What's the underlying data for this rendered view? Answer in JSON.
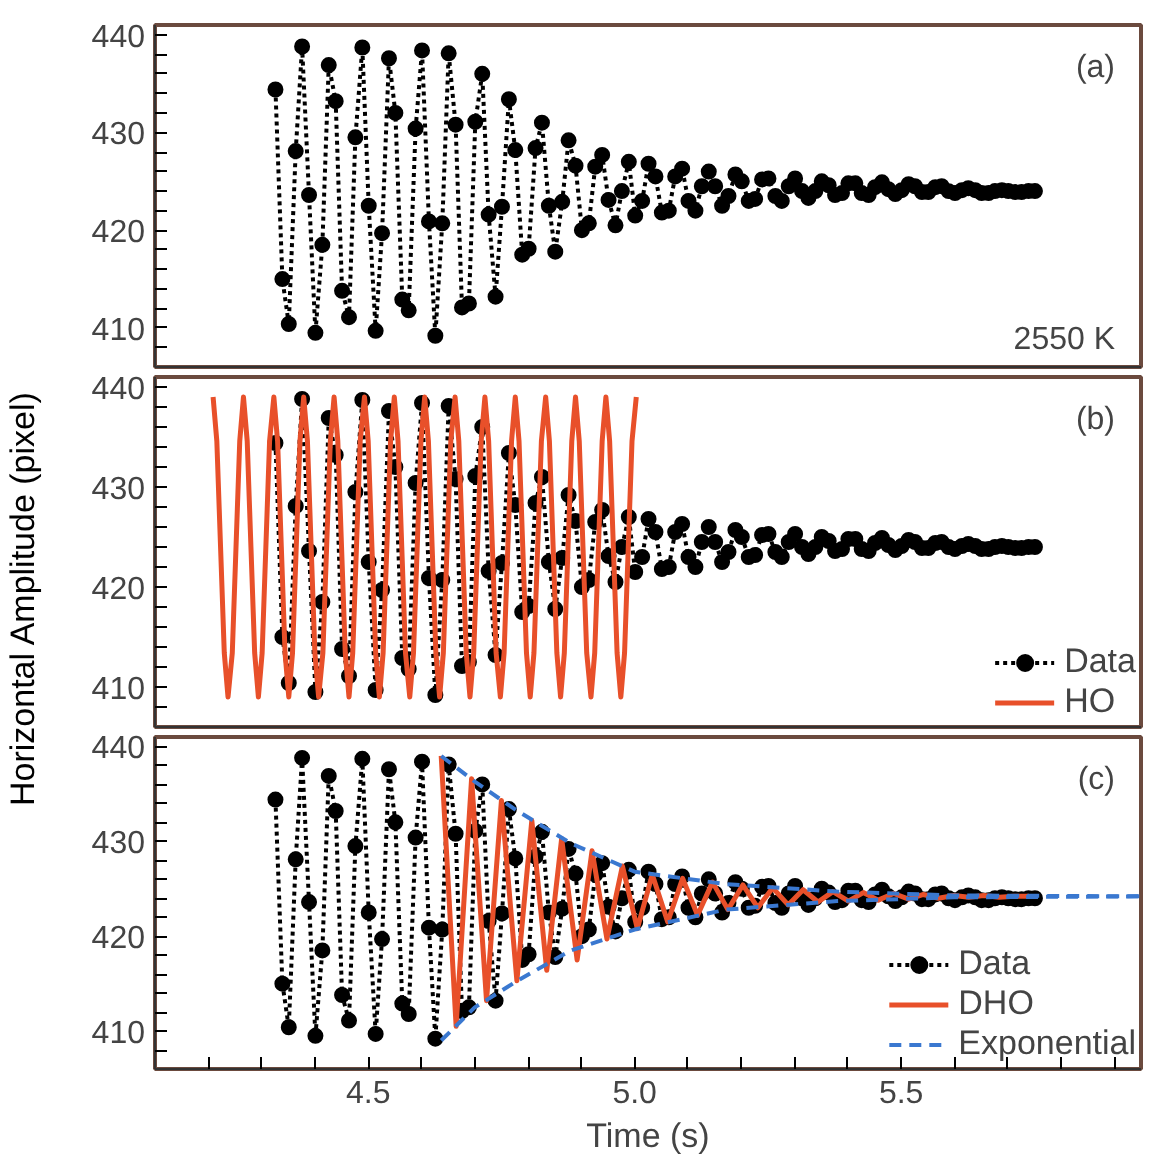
{
  "chart_data": [
    {
      "type": "line",
      "annotations": [
        "(a)",
        "2550 K"
      ],
      "xlim": [
        4.1,
        5.95
      ],
      "ylim": [
        406,
        441
      ],
      "yticks": [
        {
          "value": 408,
          "label": null
        },
        410,
        {
          "value": 412,
          "label": null
        },
        {
          "value": 414,
          "label": null
        },
        {
          "value": 416,
          "label": null
        },
        {
          "value": 418,
          "label": null
        },
        420,
        {
          "value": 422,
          "label": null
        },
        {
          "value": 424,
          "label": null
        },
        {
          "value": 426,
          "label": null
        },
        {
          "value": 428,
          "label": null
        },
        430,
        {
          "value": 432,
          "label": null
        },
        {
          "value": 434,
          "label": null
        },
        {
          "value": 436,
          "label": null
        },
        {
          "value": 438,
          "label": null
        },
        440
      ],
      "tick_labels": "y",
      "grid": false,
      "legend": false,
      "series": [
        {
          "color": "#000000",
          "marker": "circle",
          "line_style": "dotted",
          "x": [
            4.326,
            4.339,
            4.351,
            4.364,
            4.376,
            4.389,
            4.401,
            4.414,
            4.426,
            4.439,
            4.451,
            4.464,
            4.476,
            4.489,
            4.501,
            4.514,
            4.526,
            4.539,
            4.551,
            4.564,
            4.576,
            4.589,
            4.601,
            4.614,
            4.626,
            4.639,
            4.651,
            4.664,
            4.676,
            4.689,
            4.701,
            4.714,
            4.726,
            4.739,
            4.751,
            4.764,
            4.776,
            4.789,
            4.801,
            4.814,
            4.826,
            4.839,
            4.851,
            4.864,
            4.876,
            4.889,
            4.901,
            4.914,
            4.926,
            4.939,
            4.951,
            4.964,
            4.976,
            4.989,
            5.001,
            5.014,
            5.026,
            5.039,
            5.051,
            5.064,
            5.076,
            5.089,
            5.101,
            5.114,
            5.126,
            5.139,
            5.151,
            5.164,
            5.176,
            5.189,
            5.201,
            5.214,
            5.226,
            5.239,
            5.251,
            5.264,
            5.276,
            5.289,
            5.301,
            5.314,
            5.326,
            5.339,
            5.351,
            5.364,
            5.376,
            5.389,
            5.401,
            5.414,
            5.426,
            5.439,
            5.451,
            5.464,
            5.476,
            5.489,
            5.501,
            5.514,
            5.526,
            5.539,
            5.551,
            5.564,
            5.576,
            5.589,
            5.601,
            5.614,
            5.626,
            5.639,
            5.651,
            5.664,
            5.676,
            5.689,
            5.701,
            5.714,
            5.726,
            5.739,
            5.751
          ],
          "values": [
            434.4,
            415.0,
            410.4,
            428.1,
            438.8,
            423.6,
            409.5,
            418.5,
            436.9,
            433.2,
            413.8,
            411.1,
            429.5,
            438.7,
            422.5,
            409.7,
            419.7,
            437.6,
            432.0,
            412.9,
            411.8,
            430.4,
            438.4,
            420.9,
            409.2,
            420.7,
            438.1,
            430.8,
            412.1,
            412.5,
            431.1,
            436.0,
            421.6,
            413.2,
            422.4,
            433.4,
            428.2,
            417.5,
            418.1,
            428.4,
            431.0,
            422.5,
            417.8,
            422.9,
            429.2,
            426.6,
            420.0,
            420.7,
            426.5,
            427.7,
            423.1,
            420.5,
            424.0,
            427.0,
            421.5,
            423.0,
            426.8,
            425.5,
            421.8,
            422.0,
            425.5,
            426.3,
            423.0,
            422.0,
            424.5,
            426.0,
            424.5,
            422.5,
            423.5,
            425.7,
            425.0,
            423.0,
            423.2,
            425.2,
            425.3,
            423.5,
            423.0,
            424.5,
            425.3,
            424.0,
            423.3,
            424.0,
            425.0,
            424.6,
            423.6,
            423.8,
            424.8,
            424.8,
            423.8,
            423.6,
            424.4,
            424.9,
            424.2,
            423.7,
            424.1,
            424.7,
            424.5,
            423.9,
            423.9,
            424.4,
            424.5,
            424.0,
            423.8,
            424.1,
            424.3,
            424.1,
            423.8,
            423.8,
            424.0,
            424.1,
            424.0,
            423.9,
            423.9,
            424.0,
            424.0
          ]
        }
      ]
    },
    {
      "type": "line",
      "annotations": [
        "(b)"
      ],
      "ylabel": "Horizontal Amplitude (pixel)",
      "xlim": [
        4.1,
        5.95
      ],
      "ylim": [
        406,
        441
      ],
      "yticks": [
        {
          "value": 408,
          "label": null
        },
        410,
        {
          "value": 412,
          "label": null
        },
        {
          "value": 414,
          "label": null
        },
        {
          "value": 416,
          "label": null
        },
        {
          "value": 418,
          "label": null
        },
        420,
        {
          "value": 422,
          "label": null
        },
        {
          "value": 424,
          "label": null
        },
        {
          "value": 426,
          "label": null
        },
        {
          "value": 428,
          "label": null
        },
        430,
        {
          "value": 432,
          "label": null
        },
        {
          "value": 434,
          "label": null
        },
        {
          "value": 436,
          "label": null
        },
        {
          "value": 438,
          "label": null
        },
        440
      ],
      "tick_labels": "y",
      "grid": false,
      "legend": "bottom right",
      "series": [
        {
          "name": "Data",
          "color": "#000000",
          "marker": "circle",
          "line_style": "dotted",
          "x": [
            4.326,
            4.339,
            4.351,
            4.364,
            4.376,
            4.389,
            4.401,
            4.414,
            4.426,
            4.439,
            4.451,
            4.464,
            4.476,
            4.489,
            4.501,
            4.514,
            4.526,
            4.539,
            4.551,
            4.564,
            4.576,
            4.589,
            4.601,
            4.614,
            4.626,
            4.639,
            4.651,
            4.664,
            4.676,
            4.689,
            4.701,
            4.714,
            4.726,
            4.739,
            4.751,
            4.764,
            4.776,
            4.789,
            4.801,
            4.814,
            4.826,
            4.839,
            4.851,
            4.864,
            4.876,
            4.889,
            4.901,
            4.914,
            4.926,
            4.939,
            4.951,
            4.964,
            4.976,
            4.989,
            5.001,
            5.014,
            5.026,
            5.039,
            5.051,
            5.064,
            5.076,
            5.089,
            5.101,
            5.114,
            5.126,
            5.139,
            5.151,
            5.164,
            5.176,
            5.189,
            5.201,
            5.214,
            5.226,
            5.239,
            5.251,
            5.264,
            5.276,
            5.289,
            5.301,
            5.314,
            5.326,
            5.339,
            5.351,
            5.364,
            5.376,
            5.389,
            5.401,
            5.414,
            5.426,
            5.439,
            5.451,
            5.464,
            5.476,
            5.489,
            5.501,
            5.514,
            5.526,
            5.539,
            5.551,
            5.564,
            5.576,
            5.589,
            5.601,
            5.614,
            5.626,
            5.639,
            5.651,
            5.664,
            5.676,
            5.689,
            5.701,
            5.714,
            5.726,
            5.739,
            5.751
          ],
          "values": [
            434.4,
            415.0,
            410.4,
            428.1,
            438.8,
            423.6,
            409.5,
            418.5,
            436.9,
            433.2,
            413.8,
            411.1,
            429.5,
            438.7,
            422.5,
            409.7,
            419.7,
            437.6,
            432.0,
            412.9,
            411.8,
            430.4,
            438.4,
            420.9,
            409.2,
            420.7,
            438.1,
            430.8,
            412.1,
            412.5,
            431.1,
            436.0,
            421.6,
            413.2,
            422.4,
            433.4,
            428.2,
            417.5,
            418.1,
            428.4,
            431.0,
            422.5,
            417.8,
            422.9,
            429.2,
            426.6,
            420.0,
            420.7,
            426.5,
            427.7,
            423.1,
            420.5,
            424.0,
            427.0,
            421.5,
            423.0,
            426.8,
            425.5,
            421.8,
            422.0,
            425.5,
            426.3,
            423.0,
            422.0,
            424.5,
            426.0,
            424.5,
            422.5,
            423.5,
            425.7,
            425.0,
            423.0,
            423.2,
            425.2,
            425.3,
            423.5,
            423.0,
            424.5,
            425.3,
            424.0,
            423.3,
            424.0,
            425.0,
            424.6,
            423.6,
            423.8,
            424.8,
            424.8,
            423.8,
            423.6,
            424.4,
            424.9,
            424.2,
            423.7,
            424.1,
            424.7,
            424.5,
            423.9,
            423.9,
            424.4,
            424.5,
            424.0,
            423.8,
            424.1,
            424.3,
            424.1,
            423.8,
            423.8,
            424.0,
            424.1,
            424.0,
            423.9,
            423.9,
            424.0,
            424.0
          ]
        },
        {
          "name": "HO",
          "color": "#e8502a",
          "line_style": "solid",
          "x": [
            4.209,
            4.216,
            4.223,
            4.23,
            4.237,
            4.245,
            4.252,
            4.259,
            4.266,
            4.273,
            4.28,
            4.287,
            4.294,
            4.301,
            4.308,
            4.315,
            4.323,
            4.33,
            4.337,
            4.344,
            4.351,
            4.358,
            4.365,
            4.372,
            4.379,
            4.386,
            4.393,
            4.4,
            4.407,
            4.415,
            4.422,
            4.429,
            4.436,
            4.443,
            4.45,
            4.457,
            4.464,
            4.471,
            4.478,
            4.485,
            4.493,
            4.5,
            4.507,
            4.514,
            4.521,
            4.528,
            4.535,
            4.542,
            4.549,
            4.556,
            4.563,
            4.57,
            4.578,
            4.585,
            4.592,
            4.599,
            4.606,
            4.613,
            4.62,
            4.627,
            4.634,
            4.641,
            4.648,
            4.655,
            4.663,
            4.67,
            4.677,
            4.684,
            4.691,
            4.698,
            4.705,
            4.712,
            4.719,
            4.726,
            4.733,
            4.74,
            4.748,
            4.755,
            4.762,
            4.769,
            4.776,
            4.783,
            4.79,
            4.797,
            4.804,
            4.811,
            4.818,
            4.825,
            4.833,
            4.84,
            4.847,
            4.854,
            4.861,
            4.868,
            4.875,
            4.882,
            4.889,
            4.896,
            4.903,
            4.91,
            4.918,
            4.925,
            4.932,
            4.939,
            4.946,
            4.953,
            4.96,
            4.967,
            4.974,
            4.981,
            4.988,
            4.995,
            5.003
          ],
          "values": [
            439,
            434.6,
            424,
            413.4,
            409,
            413.4,
            424,
            434.6,
            439,
            434.6,
            424,
            413.4,
            409,
            413.4,
            424,
            434.6,
            439,
            434.6,
            424,
            413.4,
            409,
            413.4,
            424,
            434.6,
            439,
            434.6,
            424,
            413.4,
            409,
            413.4,
            424,
            434.6,
            439,
            434.6,
            424,
            413.4,
            409,
            413.4,
            424,
            434.6,
            439,
            434.6,
            424,
            413.4,
            409,
            413.4,
            424,
            434.6,
            439,
            434.6,
            424,
            413.4,
            409,
            413.4,
            424,
            434.6,
            439,
            434.6,
            424,
            413.4,
            409,
            413.4,
            424,
            434.6,
            439,
            434.6,
            424,
            413.4,
            409,
            413.4,
            424,
            434.6,
            439,
            434.6,
            424,
            413.4,
            409,
            413.4,
            424,
            434.6,
            439,
            434.6,
            424,
            413.4,
            409,
            413.4,
            424,
            434.6,
            439,
            434.6,
            424,
            413.4,
            409,
            413.4,
            424,
            434.6,
            439,
            434.6,
            424,
            413.4,
            409,
            413.4,
            424,
            434.6,
            439,
            434.6,
            424,
            413.4,
            409,
            413.4,
            424,
            434.6,
            439
          ]
        }
      ]
    },
    {
      "type": "line",
      "annotations": [
        "(c)"
      ],
      "xlabel": "Time (s)",
      "xlim": [
        4.1,
        5.95
      ],
      "ylim": [
        406,
        441
      ],
      "xticks": [
        {
          "value": 4.2,
          "label": null
        },
        {
          "value": 4.3,
          "label": null
        },
        {
          "value": 4.4,
          "label": null
        },
        4.5,
        {
          "value": 4.6,
          "label": null
        },
        {
          "value": 4.7,
          "label": null
        },
        {
          "value": 4.8,
          "label": null
        },
        {
          "value": 4.9,
          "label": null
        },
        {
          "value": 5.0,
          "label": "5.0"
        },
        {
          "value": 5.1,
          "label": null
        },
        {
          "value": 5.2,
          "label": null
        },
        {
          "value": 5.3,
          "label": null
        },
        {
          "value": 5.4,
          "label": null
        },
        5.5,
        {
          "value": 5.6,
          "label": null
        },
        {
          "value": 5.7,
          "label": null
        },
        {
          "value": 5.8,
          "label": null
        },
        {
          "value": 5.9,
          "label": null
        }
      ],
      "yticks": [
        {
          "value": 408,
          "label": null
        },
        410,
        {
          "value": 412,
          "label": null
        },
        {
          "value": 414,
          "label": null
        },
        {
          "value": 416,
          "label": null
        },
        {
          "value": 418,
          "label": null
        },
        420,
        {
          "value": 422,
          "label": null
        },
        {
          "value": 424,
          "label": null
        },
        {
          "value": 426,
          "label": null
        },
        {
          "value": 428,
          "label": null
        },
        430,
        {
          "value": 432,
          "label": null
        },
        {
          "value": 434,
          "label": null
        },
        {
          "value": 436,
          "label": null
        },
        {
          "value": 438,
          "label": null
        },
        440
      ],
      "grid": false,
      "legend": "bottom right",
      "series": [
        {
          "name": "Data",
          "color": "#000000",
          "marker": "circle",
          "line_style": "dotted",
          "x": [
            4.326,
            4.339,
            4.351,
            4.364,
            4.376,
            4.389,
            4.401,
            4.414,
            4.426,
            4.439,
            4.451,
            4.464,
            4.476,
            4.489,
            4.501,
            4.514,
            4.526,
            4.539,
            4.551,
            4.564,
            4.576,
            4.589,
            4.601,
            4.614,
            4.626,
            4.639,
            4.651,
            4.664,
            4.676,
            4.689,
            4.701,
            4.714,
            4.726,
            4.739,
            4.751,
            4.764,
            4.776,
            4.789,
            4.801,
            4.814,
            4.826,
            4.839,
            4.851,
            4.864,
            4.876,
            4.889,
            4.901,
            4.914,
            4.926,
            4.939,
            4.951,
            4.964,
            4.976,
            4.989,
            5.001,
            5.014,
            5.026,
            5.039,
            5.051,
            5.064,
            5.076,
            5.089,
            5.101,
            5.114,
            5.126,
            5.139,
            5.151,
            5.164,
            5.176,
            5.189,
            5.201,
            5.214,
            5.226,
            5.239,
            5.251,
            5.264,
            5.276,
            5.289,
            5.301,
            5.314,
            5.326,
            5.339,
            5.351,
            5.364,
            5.376,
            5.389,
            5.401,
            5.414,
            5.426,
            5.439,
            5.451,
            5.464,
            5.476,
            5.489,
            5.501,
            5.514,
            5.526,
            5.539,
            5.551,
            5.564,
            5.576,
            5.589,
            5.601,
            5.614,
            5.626,
            5.639,
            5.651,
            5.664,
            5.676,
            5.689,
            5.701,
            5.714,
            5.726,
            5.739,
            5.751
          ],
          "values": [
            434.4,
            415.0,
            410.4,
            428.1,
            438.8,
            423.6,
            409.5,
            418.5,
            436.9,
            433.2,
            413.8,
            411.1,
            429.5,
            438.7,
            422.5,
            409.7,
            419.7,
            437.6,
            432.0,
            412.9,
            411.8,
            430.4,
            438.4,
            420.9,
            409.2,
            420.7,
            438.1,
            430.8,
            412.1,
            412.5,
            431.1,
            436.0,
            421.6,
            413.2,
            422.4,
            433.4,
            428.2,
            417.5,
            418.1,
            428.4,
            431.0,
            422.5,
            417.8,
            422.9,
            429.2,
            426.6,
            420.0,
            420.7,
            426.5,
            427.7,
            423.1,
            420.5,
            424.0,
            427.0,
            421.5,
            423.0,
            426.8,
            425.5,
            421.8,
            422.0,
            425.5,
            426.3,
            423.0,
            422.0,
            424.5,
            426.0,
            424.5,
            422.5,
            423.5,
            425.7,
            425.0,
            423.0,
            423.2,
            425.2,
            425.3,
            423.5,
            423.0,
            424.5,
            425.3,
            424.0,
            423.3,
            424.0,
            425.0,
            424.6,
            423.6,
            423.8,
            424.8,
            424.8,
            423.8,
            423.6,
            424.4,
            424.9,
            424.2,
            423.7,
            424.1,
            424.7,
            424.5,
            423.9,
            423.9,
            424.4,
            424.5,
            424.0,
            423.8,
            424.1,
            424.3,
            424.1,
            423.8,
            423.8,
            424.0,
            424.1,
            424.0,
            423.9,
            423.9,
            424.0,
            424.0
          ]
        },
        {
          "name": "DHO",
          "color": "#e8502a",
          "line_style": "solid",
          "x": [
            4.637,
            4.665,
            4.694,
            4.722,
            4.75,
            4.779,
            4.807,
            4.835,
            4.863,
            4.892,
            4.92,
            4.948,
            4.977,
            5.005,
            5.033,
            5.062,
            5.09,
            5.118,
            5.146,
            5.175,
            5.203,
            5.231,
            5.259,
            5.288,
            5.316,
            5.344,
            5.372,
            5.401,
            5.429,
            5.457,
            5.486,
            5.514,
            5.542,
            5.57,
            5.599,
            5.627,
            5.655,
            5.684,
            5.712,
            5.74
          ],
          "values": [
            439,
            410.5,
            436.6,
            413.2,
            434.3,
            415.3,
            432.2,
            416.4,
            430.3,
            417.5,
            429.0,
            419.7,
            427.4,
            420.8,
            426.5,
            421.5,
            426.1,
            422.2,
            425.7,
            422.8,
            425.4,
            423.0,
            425.1,
            423.3,
            424.9,
            423.6,
            424.7,
            423.7,
            424.6,
            423.8,
            424.5,
            423.9,
            424.4,
            424.0,
            424.3,
            424.1,
            424.3,
            424.1,
            424.2,
            424.2
          ]
        },
        {
          "name": "Exponential",
          "color": "#3a78d0",
          "line_style": "dashed",
          "x": [
            4.637,
            4.7,
            4.78,
            4.88,
            5.0,
            5.17,
            5.38,
            5.6,
            5.95
          ],
          "values": [
            439,
            436.3,
            433.2,
            429.8,
            426.8,
            425.5,
            424.7,
            424.3,
            424.2
          ]
        },
        {
          "color": "#3a78d0",
          "line_style": "dashed",
          "x": [
            4.637,
            4.7,
            4.78,
            4.88,
            5.0,
            5.17,
            5.38,
            5.6,
            5.95
          ],
          "values": [
            409,
            412.5,
            415.3,
            418.5,
            420.7,
            422.8,
            423.7,
            424.1,
            424.2
          ]
        }
      ]
    }
  ]
}
